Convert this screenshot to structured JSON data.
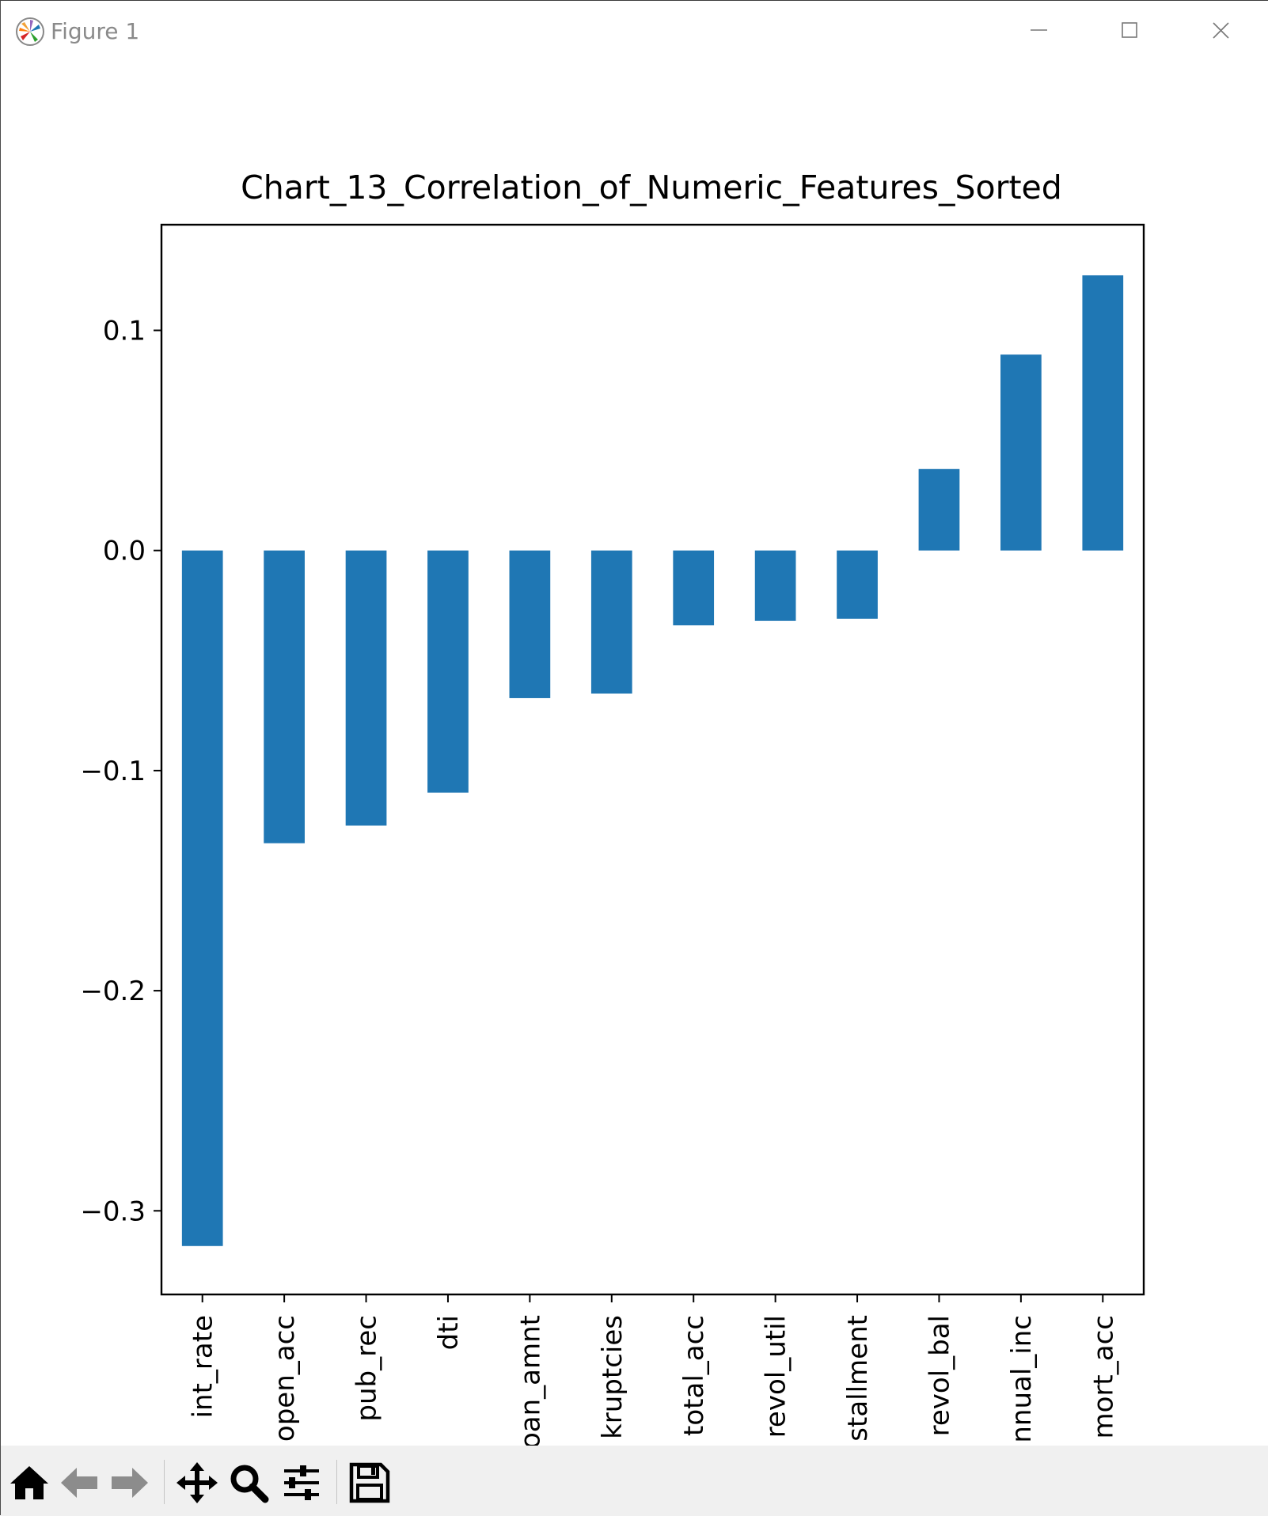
{
  "window": {
    "title": "Figure 1",
    "buttons": [
      "minimize-icon",
      "maximize-icon",
      "close-icon"
    ]
  },
  "toolbar": {
    "tools": [
      "home-icon",
      "back-arrow-icon",
      "forward-arrow-icon",
      "pan-icon",
      "zoom-icon",
      "configure-subplots-icon",
      "save-icon"
    ]
  },
  "chart_data": {
    "type": "bar",
    "title": "Chart_13_Correlation_of_Numeric_Features_Sorted",
    "xlabel": "",
    "ylabel": "",
    "categories": [
      "int_rate",
      "open_acc",
      "pub_rec",
      "dti",
      "loan_amnt",
      "pub_rec_bankruptcies",
      "total_acc",
      "revol_util",
      "installment",
      "revol_bal",
      "annual_inc",
      "mort_acc"
    ],
    "tick_labels_visible": [
      "int_rate",
      "open_acc",
      "pub_rec",
      "dti",
      "oan_amnt",
      "kruptcies",
      "total_acc",
      "revol_util",
      "stallment",
      "revol_bal",
      "nnual_inc",
      "mort_acc"
    ],
    "values": [
      -0.316,
      -0.133,
      -0.125,
      -0.11,
      -0.067,
      -0.065,
      -0.034,
      -0.032,
      -0.031,
      0.037,
      0.089,
      0.125
    ],
    "ylim": [
      -0.338,
      0.148
    ],
    "yticks": [
      0.1,
      0.0,
      -0.1,
      -0.2,
      -0.3
    ],
    "ytick_labels": [
      "0.1",
      "0.0",
      "−0.1",
      "−0.2",
      "−0.3"
    ],
    "bar_color": "#1f77b4",
    "grid": false,
    "legend": "none"
  }
}
